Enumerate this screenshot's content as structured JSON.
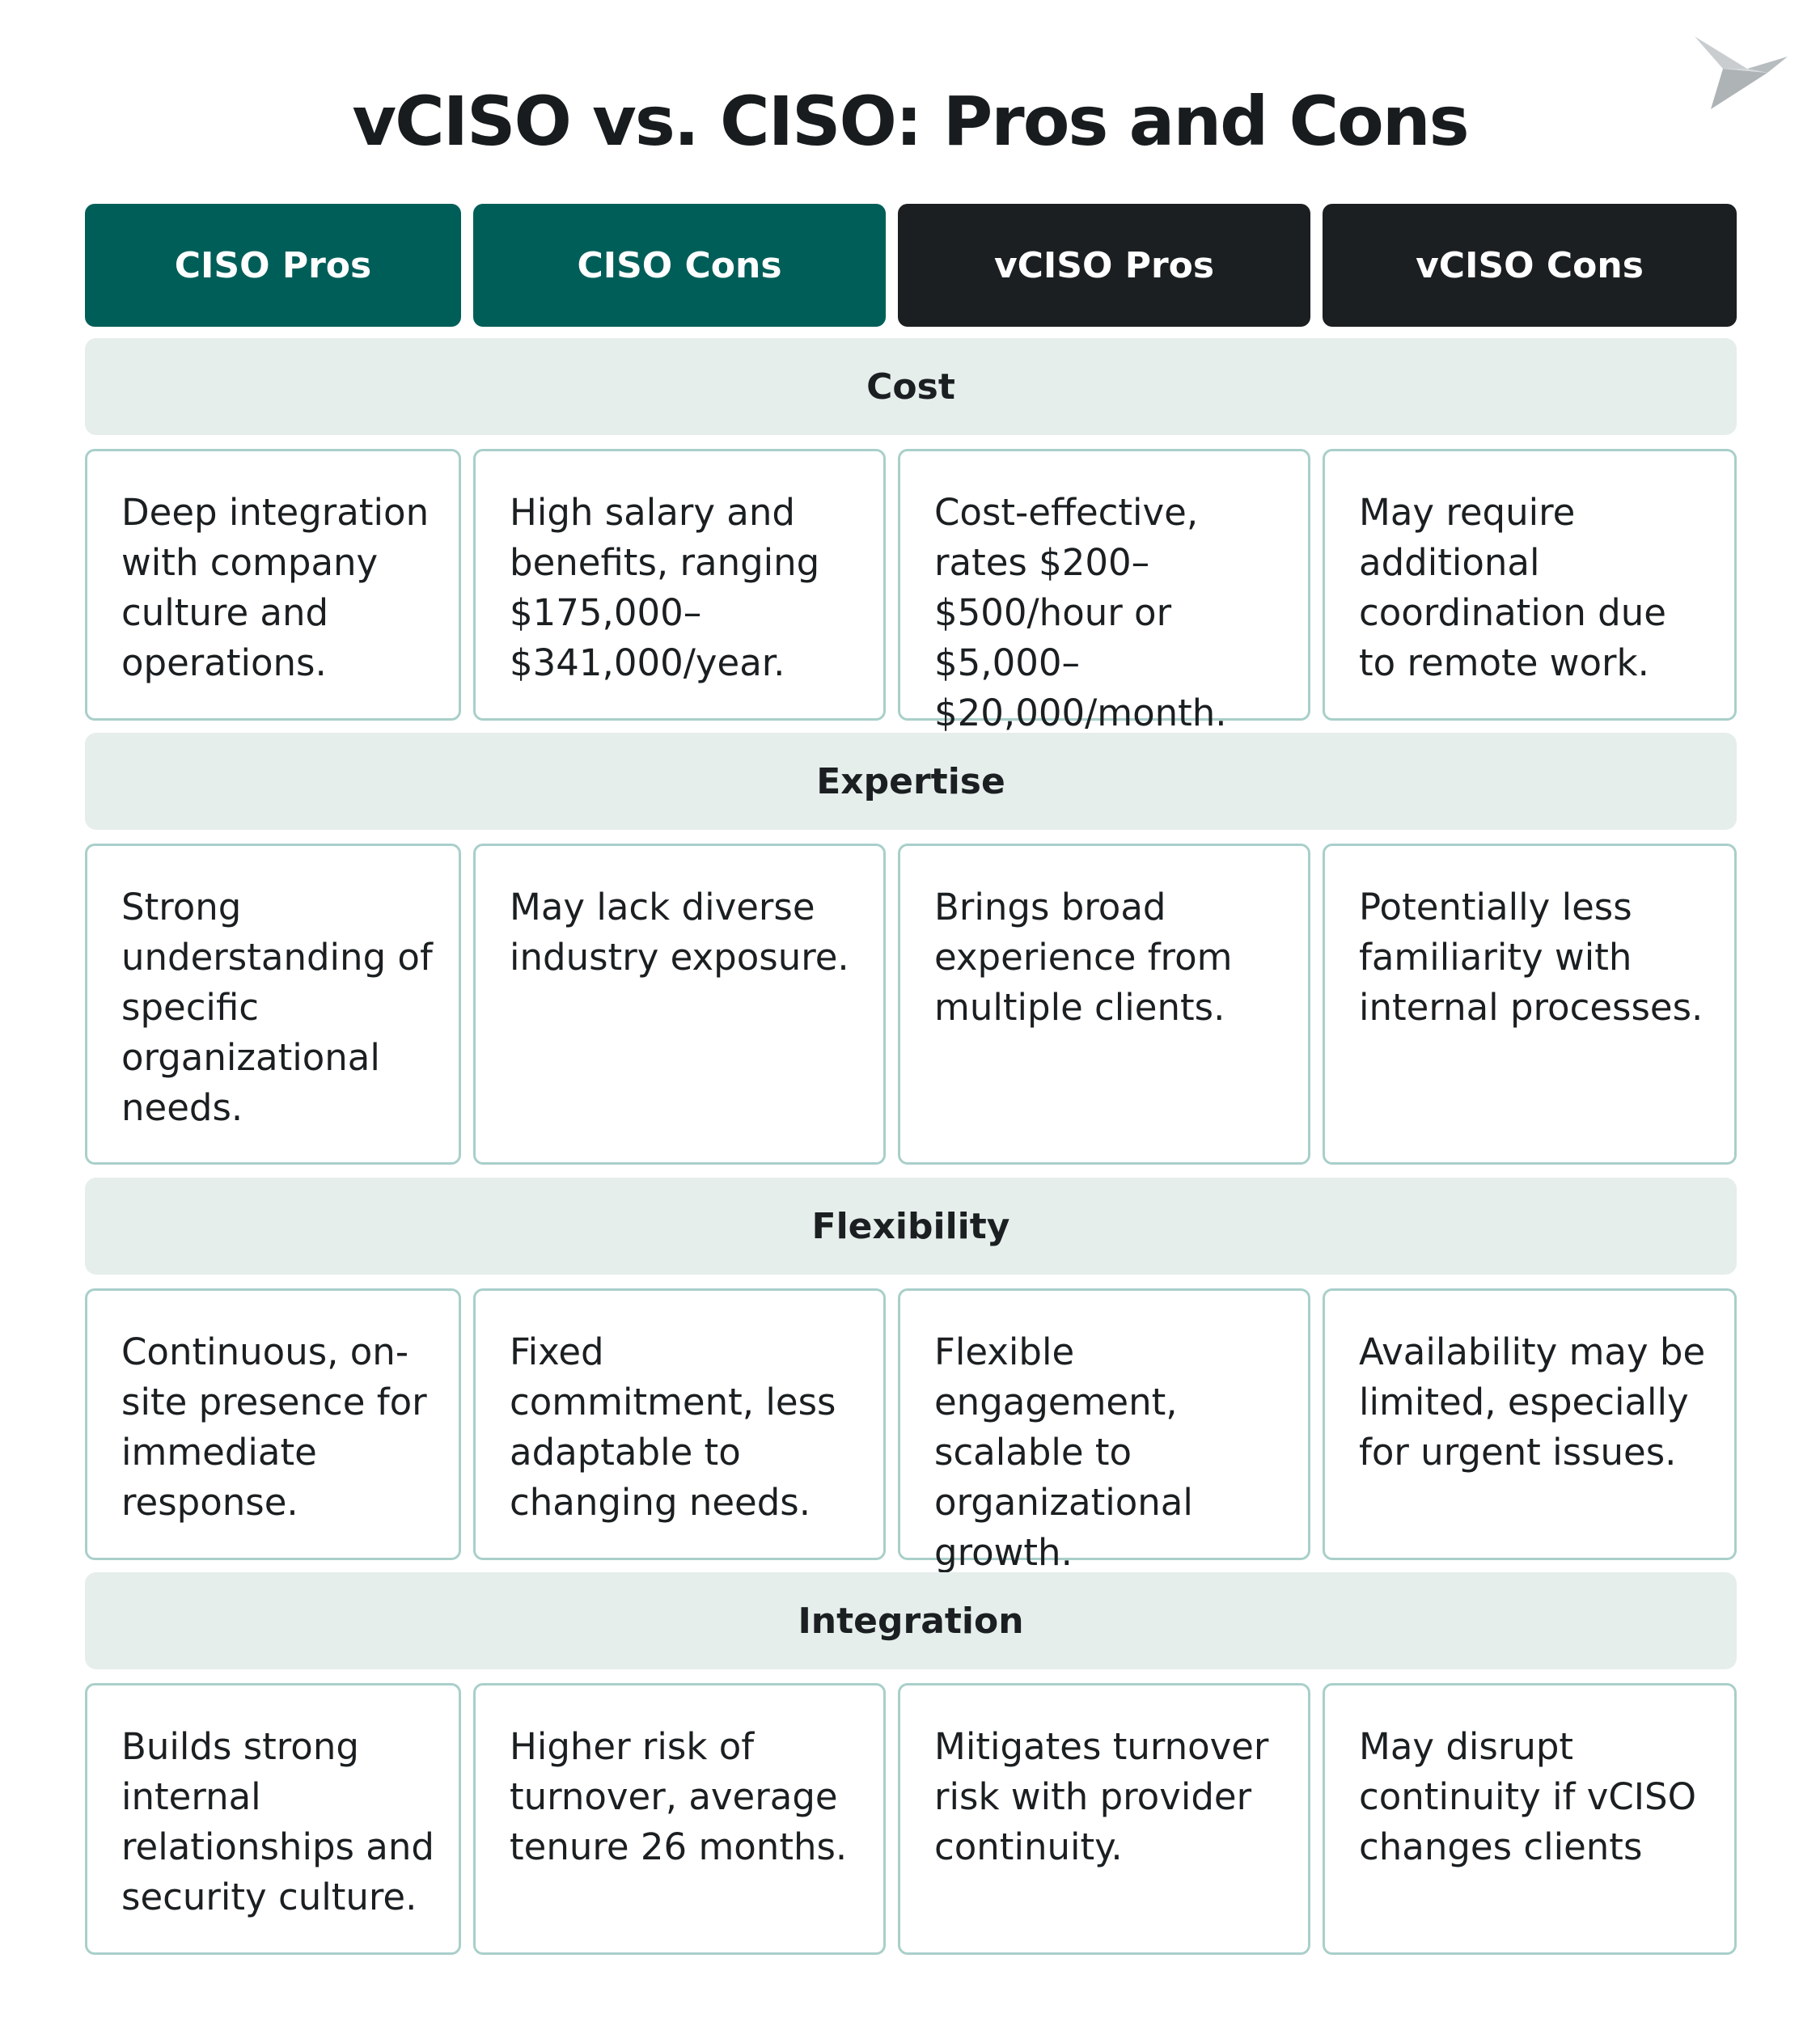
{
  "title": "vCISO vs. CISO: Pros and Cons",
  "logo_icon": "bird-logo-icon",
  "columns": [
    "CISO Pros",
    "CISO Cons",
    "vCISO Pros",
    "vCISO Cons"
  ],
  "colors": {
    "teal_header": "#005e59",
    "dark_header": "#1b1f21",
    "section_bg": "#e6eeec",
    "cell_border": "#a9cfca"
  },
  "sections": [
    {
      "name": "Cost",
      "cells": [
        "Deep integration with company culture and operations.",
        "High salary and benefits, ranging $175,000–$341,000/year.",
        "Cost-effective, rates $200–$500/hour or $5,000–$20,000/month.",
        "May require additional coordination due to remote work."
      ]
    },
    {
      "name": "Expertise",
      "cells": [
        "Strong understanding of specific organizational needs.",
        "May lack diverse industry exposure.",
        "Brings broad experience from multiple clients.",
        "Potentially less familiarity with internal processes."
      ]
    },
    {
      "name": "Flexibility",
      "cells": [
        "Continuous, on-site presence for immediate response.",
        "Fixed commitment, less adaptable to changing needs.",
        "Flexible engagement, scalable to organizational growth.",
        "Availability may be limited, especially for urgent issues."
      ]
    },
    {
      "name": "Integration",
      "cells": [
        "Builds strong internal relationships and security culture.",
        "Higher risk of turnover, average tenure 26 months.",
        "Mitigates turnover risk with provider continuity.",
        "May disrupt continuity if vCISO changes clients"
      ]
    }
  ]
}
